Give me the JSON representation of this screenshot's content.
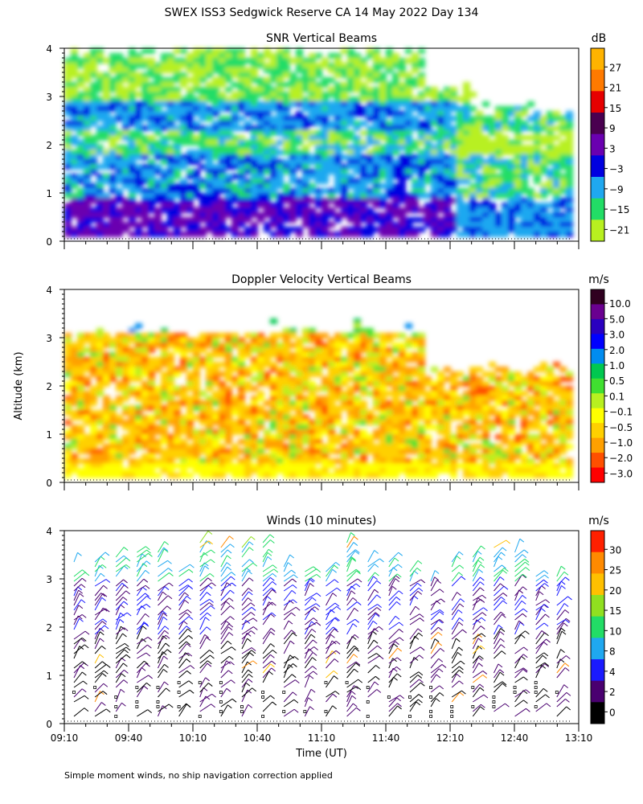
{
  "figure_title": "SWEX ISS3 Sedgwick Reserve CA  14 May 2022 Day 134",
  "footnote": "Simple moment winds, no ship navigation correction applied",
  "chart_data": [
    {
      "type": "heatmap",
      "title": "SNR Vertical Beams",
      "colorbar_unit": "dB",
      "colorbar_ticks": [
        "27",
        "21",
        "15",
        "9",
        "3",
        "−3",
        "−9",
        "−15",
        "−21"
      ],
      "colorbar_colors": [
        "#ffb300",
        "#ff7a00",
        "#e60000",
        "#4a0050",
        "#6a00b0",
        "#0000e0",
        "#1fa8f0",
        "#22dd66",
        "#b8f020"
      ],
      "x_range": [
        "09:10",
        "13:10"
      ],
      "ylim": [
        0,
        4
      ],
      "y_ticks": [
        "0",
        "1",
        "2",
        "3",
        "4"
      ],
      "grid": false
    },
    {
      "type": "heatmap",
      "title": "Doppler Velocity Vertical Beams",
      "colorbar_unit": "m/s",
      "colorbar_ticks": [
        "10.0",
        "5.0",
        "3.0",
        "2.0",
        "1.0",
        "0.5",
        "0.1",
        "−0.1",
        "−0.5",
        "−1.0",
        "−2.0",
        "−3.0"
      ],
      "colorbar_colors": [
        "#300020",
        "#6a0090",
        "#2a00c0",
        "#0000ff",
        "#008cf0",
        "#00c850",
        "#40e030",
        "#b8f020",
        "#ffff00",
        "#ffd000",
        "#ffa000",
        "#ff5000",
        "#ff0000"
      ],
      "x_range": [
        "09:10",
        "13:10"
      ],
      "ylim": [
        0,
        4
      ],
      "y_ticks": [
        "0",
        "1",
        "2",
        "3",
        "4"
      ],
      "grid": false
    },
    {
      "type": "scatter",
      "title": "Winds (10 minutes)",
      "colorbar_unit": "m/s",
      "colorbar_ticks": [
        "30",
        "25",
        "20",
        "15",
        "10",
        "8",
        "4",
        "2",
        "0"
      ],
      "colorbar_colors": [
        "#ff2000",
        "#ff8a00",
        "#ffc000",
        "#90e020",
        "#22dd66",
        "#1fa8f0",
        "#1a1aff",
        "#4a0070",
        "#000000"
      ],
      "x_ticks": [
        "09:10",
        "09:40",
        "10:10",
        "10:40",
        "11:10",
        "11:40",
        "12:10",
        "12:40",
        "13:10"
      ],
      "xlabel": "Time (UT)",
      "ylim": [
        0,
        4
      ],
      "y_ticks": [
        "0",
        "1",
        "2",
        "3",
        "4"
      ],
      "grid": false
    }
  ],
  "ylabel": "Altitude (km)"
}
